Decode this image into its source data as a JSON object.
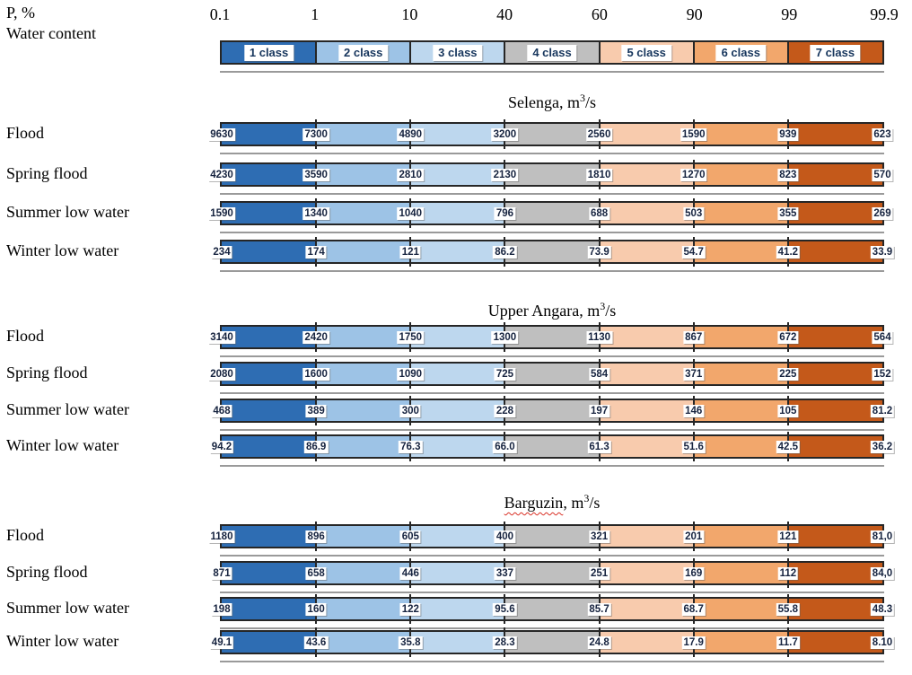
{
  "header": {
    "p_label": "P, %",
    "water_content_label": "Water content",
    "ticks": [
      "0.1",
      "1",
      "10",
      "40",
      "60",
      "90",
      "99",
      "99.9"
    ]
  },
  "chart_data": {
    "type": "bar",
    "x_axis_label": "P, %",
    "x_ticks": [
      0.1,
      1,
      10,
      40,
      60,
      90,
      99,
      99.9
    ],
    "legend_label": "Water content",
    "classes": [
      {
        "label": "1 class",
        "color": "#2E6DB3"
      },
      {
        "label": "2 class",
        "color": "#9DC3E6"
      },
      {
        "label": "3 class",
        "color": "#BDD7EE"
      },
      {
        "label": "4 class",
        "color": "#BFBFBF"
      },
      {
        "label": "5 class",
        "color": "#F8CBAD"
      },
      {
        "label": "6 class",
        "color": "#F2A76C"
      },
      {
        "label": "7 class",
        "color": "#C4591A"
      }
    ],
    "unit": {
      "pre": ", m",
      "sup": "3",
      "post": "/s"
    },
    "sections": [
      {
        "name": "Selenga",
        "misspell_underline": false,
        "rows": [
          {
            "label": "Flood",
            "values": [
              "9630",
              "7300",
              "4890",
              "3200",
              "2560",
              "1590",
              "939",
              "623"
            ]
          },
          {
            "label": "Spring flood",
            "values": [
              "4230",
              "3590",
              "2810",
              "2130",
              "1810",
              "1270",
              "823",
              "570"
            ]
          },
          {
            "label": "Summer low water",
            "values": [
              "1590",
              "1340",
              "1040",
              "796",
              "688",
              "503",
              "355",
              "269"
            ]
          },
          {
            "label": "Winter low water",
            "values": [
              "234",
              "174",
              "121",
              "86.2",
              "73.9",
              "54.7",
              "41.2",
              "33.9"
            ]
          }
        ]
      },
      {
        "name": "Upper Angara",
        "misspell_underline": false,
        "rows": [
          {
            "label": "Flood",
            "values": [
              "3140",
              "2420",
              "1750",
              "1300",
              "1130",
              "867",
              "672",
              "564"
            ]
          },
          {
            "label": "Spring flood",
            "values": [
              "2080",
              "1600",
              "1090",
              "725",
              "584",
              "371",
              "225",
              "152"
            ]
          },
          {
            "label": "Summer low water",
            "values": [
              "468",
              "389",
              "300",
              "228",
              "197",
              "146",
              "105",
              "81.2"
            ]
          },
          {
            "label": "Winter low water",
            "values": [
              "94.2",
              "86.9",
              "76.3",
              "66.0",
              "61.3",
              "51.6",
              "42.5",
              "36.2"
            ]
          }
        ]
      },
      {
        "name": "Barguzin",
        "misspell_underline": true,
        "rows": [
          {
            "label": "Flood",
            "values": [
              "1180",
              "896",
              "605",
              "400",
              "321",
              "201",
              "121",
              "81,0"
            ]
          },
          {
            "label": "Spring flood",
            "values": [
              "871",
              "658",
              "446",
              "337",
              "251",
              "169",
              "112",
              "84,0"
            ]
          },
          {
            "label": "Summer low water",
            "values": [
              "198",
              "160",
              "122",
              "95.6",
              "85.7",
              "68.7",
              "55.8",
              "48.3"
            ]
          },
          {
            "label": "Winter low water",
            "values": [
              "49.1",
              "43.6",
              "35.8",
              "28.3",
              "24.8",
              "17.9",
              "11.7",
              "8.10"
            ]
          }
        ]
      }
    ]
  }
}
